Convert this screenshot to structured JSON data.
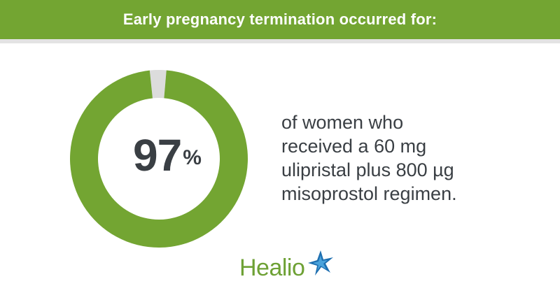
{
  "header": {
    "title": "Early pregnancy termination occurred for:"
  },
  "chart_data": {
    "type": "pie",
    "style": "donut",
    "values": [
      97,
      3
    ],
    "colors": [
      "#73a532",
      "#dcdcdc"
    ],
    "center_label": {
      "value": "97",
      "unit": "%"
    },
    "legend": "none"
  },
  "description": {
    "lines": [
      "of women who",
      "received a 60 mg",
      "ulipristal plus 800 µg",
      "misoprostol regimen."
    ]
  },
  "logo": {
    "text": "Healio",
    "icon": "star-burst-icon",
    "color": "#6ea135"
  }
}
